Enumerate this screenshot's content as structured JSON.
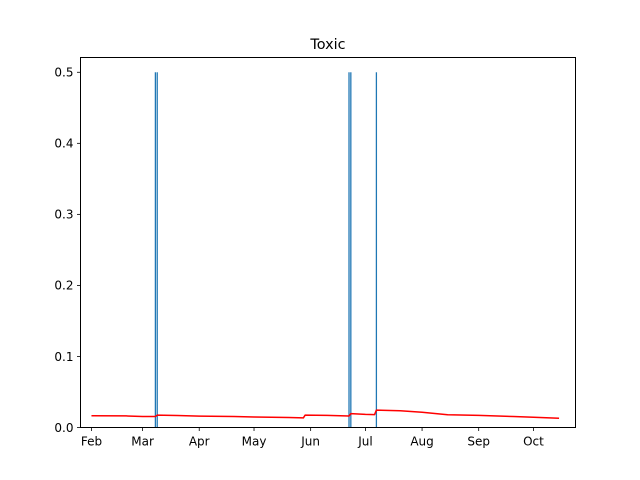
{
  "chart_data": {
    "type": "line",
    "title": "Toxic",
    "xlabel": "",
    "ylabel": "",
    "x_axis": {
      "type": "date",
      "range": [
        "2023-01-26",
        "2023-10-24"
      ],
      "ticks": [
        {
          "label": "Feb",
          "date": "2023-02-01"
        },
        {
          "label": "Mar",
          "date": "2023-03-01"
        },
        {
          "label": "Apr",
          "date": "2023-04-01"
        },
        {
          "label": "May",
          "date": "2023-05-01"
        },
        {
          "label": "Jun",
          "date": "2023-06-01"
        },
        {
          "label": "Jul",
          "date": "2023-07-01"
        },
        {
          "label": "Aug",
          "date": "2023-08-01"
        },
        {
          "label": "Sep",
          "date": "2023-09-01"
        },
        {
          "label": "Oct",
          "date": "2023-10-01"
        }
      ]
    },
    "y_axis": {
      "range": [
        0,
        0.5208
      ],
      "ticks": [
        {
          "label": "0.0",
          "value": 0.0
        },
        {
          "label": "0.1",
          "value": 0.1
        },
        {
          "label": "0.2",
          "value": 0.2
        },
        {
          "label": "0.3",
          "value": 0.3
        },
        {
          "label": "0.4",
          "value": 0.4
        },
        {
          "label": "0.5",
          "value": 0.5
        }
      ]
    },
    "grid": false,
    "bars": {
      "color": "#1f77b4",
      "points": [
        {
          "date": "2023-03-08",
          "value": 0.5
        },
        {
          "date": "2023-03-09",
          "value": 0.5
        },
        {
          "date": "2023-06-22",
          "value": 0.5
        },
        {
          "date": "2023-06-23",
          "value": 0.5
        },
        {
          "date": "2023-07-07",
          "value": 0.5
        }
      ]
    },
    "trend_line": {
      "color": "#ff0000",
      "points": [
        {
          "date": "2023-02-01",
          "value": 0.0165
        },
        {
          "date": "2023-02-20",
          "value": 0.0163
        },
        {
          "date": "2023-03-01",
          "value": 0.0155
        },
        {
          "date": "2023-03-08",
          "value": 0.0155
        },
        {
          "date": "2023-03-09",
          "value": 0.0175
        },
        {
          "date": "2023-03-20",
          "value": 0.0168
        },
        {
          "date": "2023-04-01",
          "value": 0.016
        },
        {
          "date": "2023-04-20",
          "value": 0.0155
        },
        {
          "date": "2023-05-01",
          "value": 0.0148
        },
        {
          "date": "2023-05-20",
          "value": 0.014
        },
        {
          "date": "2023-05-28",
          "value": 0.0135
        },
        {
          "date": "2023-05-29",
          "value": 0.0175
        },
        {
          "date": "2023-06-10",
          "value": 0.017
        },
        {
          "date": "2023-06-22",
          "value": 0.0162
        },
        {
          "date": "2023-06-23",
          "value": 0.0195
        },
        {
          "date": "2023-07-01",
          "value": 0.0185
        },
        {
          "date": "2023-07-06",
          "value": 0.0182
        },
        {
          "date": "2023-07-07",
          "value": 0.0245
        },
        {
          "date": "2023-07-20",
          "value": 0.0235
        },
        {
          "date": "2023-08-01",
          "value": 0.0215
        },
        {
          "date": "2023-08-15",
          "value": 0.018
        },
        {
          "date": "2023-09-01",
          "value": 0.017
        },
        {
          "date": "2023-09-20",
          "value": 0.0155
        },
        {
          "date": "2023-10-01",
          "value": 0.0145
        },
        {
          "date": "2023-10-15",
          "value": 0.013
        }
      ]
    }
  }
}
